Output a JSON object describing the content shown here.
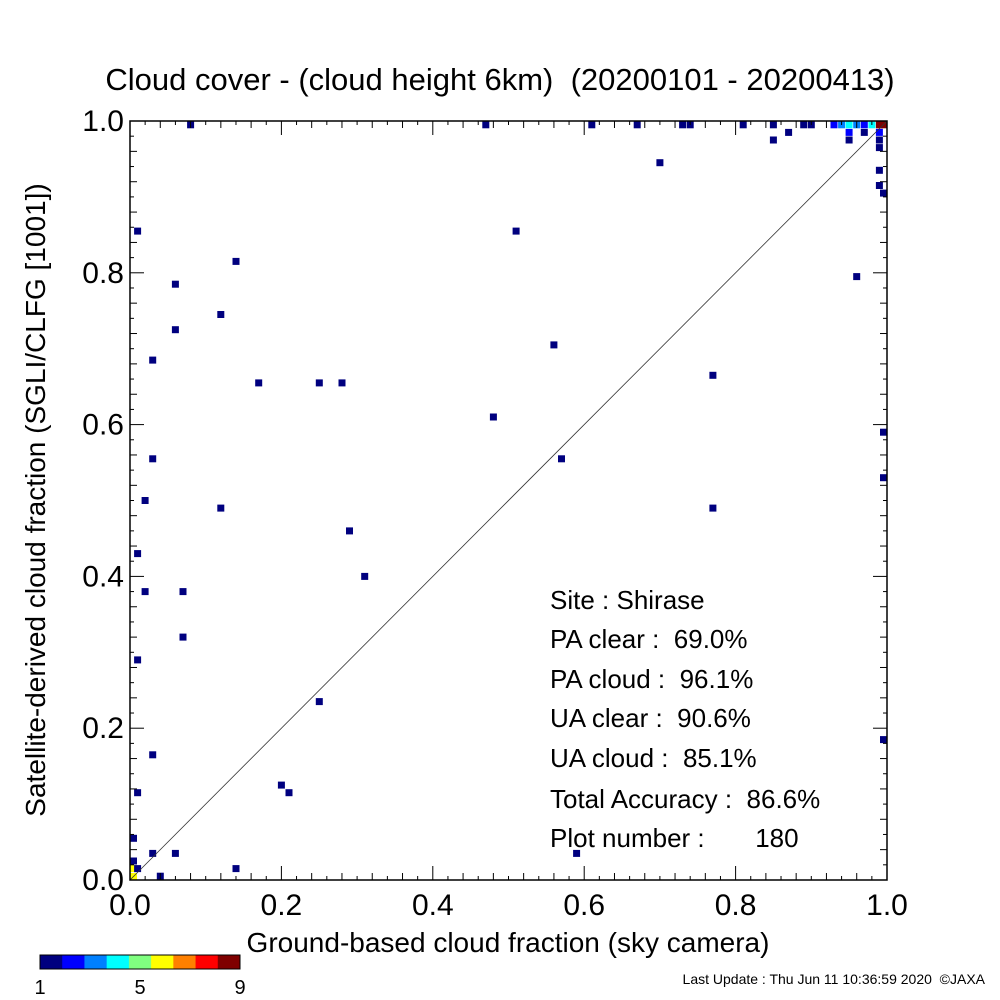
{
  "chart_data": {
    "type": "scatter",
    "title": "Cloud cover - (cloud height 6km)  (20200101 - 20200413)",
    "xlabel": "Ground-based cloud fraction (sky camera)",
    "ylabel": "Satellite-derived cloud fraction (SGLI/CLFG [1001])",
    "xlim": [
      0.0,
      1.0
    ],
    "ylim": [
      0.0,
      1.0
    ],
    "x_tick_labels": [
      "0.0",
      "0.2",
      "0.4",
      "0.6",
      "0.8",
      "1.0"
    ],
    "y_tick_labels": [
      "0.0",
      "0.2",
      "0.4",
      "0.6",
      "0.8",
      "1.0"
    ],
    "reference_line": "1:1 diagonal",
    "grid": false,
    "stats": {
      "site": "Site : Shirase",
      "pa_clear": "PA clear :  69.0%",
      "pa_cloud": "PA cloud :  96.1%",
      "ua_clear": "UA clear :  90.6%",
      "ua_cloud": "UA cloud :  85.1%",
      "total_accuracy": "Total Accuracy :  86.6%",
      "plot_number": "Plot number :       180"
    },
    "colorbar": {
      "min_label": "1",
      "mid_label": "5",
      "max_label": "9",
      "colors": [
        "#00007f",
        "#0000ff",
        "#0080ff",
        "#00ffff",
        "#80ff80",
        "#ffff00",
        "#ff8000",
        "#ff0000",
        "#7f0000"
      ]
    },
    "points": [
      {
        "x": 0.0,
        "y": 0.0,
        "count": 6
      },
      {
        "x": 0.0,
        "y": 0.015,
        "count": 6
      },
      {
        "x": 0.0,
        "y": 0.025,
        "count": 1
      },
      {
        "x": 0.0,
        "y": 0.055,
        "count": 1
      },
      {
        "x": 0.01,
        "y": 0.015,
        "count": 1
      },
      {
        "x": 0.01,
        "y": 0.115,
        "count": 1
      },
      {
        "x": 0.01,
        "y": 0.29,
        "count": 1
      },
      {
        "x": 0.01,
        "y": 0.43,
        "count": 1
      },
      {
        "x": 0.01,
        "y": 0.855,
        "count": 1
      },
      {
        "x": 0.02,
        "y": 0.38,
        "count": 1
      },
      {
        "x": 0.02,
        "y": 0.5,
        "count": 1
      },
      {
        "x": 0.03,
        "y": 0.035,
        "count": 1
      },
      {
        "x": 0.03,
        "y": 0.165,
        "count": 1
      },
      {
        "x": 0.03,
        "y": 0.555,
        "count": 1
      },
      {
        "x": 0.03,
        "y": 0.685,
        "count": 1
      },
      {
        "x": 0.04,
        "y": 0.005,
        "count": 1
      },
      {
        "x": 0.06,
        "y": 0.035,
        "count": 1
      },
      {
        "x": 0.06,
        "y": 0.725,
        "count": 1
      },
      {
        "x": 0.06,
        "y": 0.785,
        "count": 1
      },
      {
        "x": 0.07,
        "y": 0.32,
        "count": 1
      },
      {
        "x": 0.07,
        "y": 0.38,
        "count": 1
      },
      {
        "x": 0.08,
        "y": 0.995,
        "count": 1
      },
      {
        "x": 0.12,
        "y": 0.49,
        "count": 1
      },
      {
        "x": 0.12,
        "y": 0.745,
        "count": 1
      },
      {
        "x": 0.14,
        "y": 0.015,
        "count": 1
      },
      {
        "x": 0.14,
        "y": 0.815,
        "count": 1
      },
      {
        "x": 0.17,
        "y": 0.655,
        "count": 1
      },
      {
        "x": 0.2,
        "y": 0.125,
        "count": 1
      },
      {
        "x": 0.21,
        "y": 0.115,
        "count": 1
      },
      {
        "x": 0.25,
        "y": 0.235,
        "count": 1
      },
      {
        "x": 0.25,
        "y": 0.655,
        "count": 1
      },
      {
        "x": 0.28,
        "y": 0.655,
        "count": 1
      },
      {
        "x": 0.29,
        "y": 0.46,
        "count": 1
      },
      {
        "x": 0.31,
        "y": 0.4,
        "count": 1
      },
      {
        "x": 0.47,
        "y": 0.995,
        "count": 1
      },
      {
        "x": 0.48,
        "y": 0.61,
        "count": 1
      },
      {
        "x": 0.51,
        "y": 0.855,
        "count": 1
      },
      {
        "x": 0.56,
        "y": 0.705,
        "count": 1
      },
      {
        "x": 0.57,
        "y": 0.555,
        "count": 1
      },
      {
        "x": 0.59,
        "y": 0.035,
        "count": 1
      },
      {
        "x": 0.61,
        "y": 0.995,
        "count": 1
      },
      {
        "x": 0.67,
        "y": 0.995,
        "count": 1
      },
      {
        "x": 0.7,
        "y": 0.945,
        "count": 1
      },
      {
        "x": 0.73,
        "y": 0.995,
        "count": 1
      },
      {
        "x": 0.74,
        "y": 0.995,
        "count": 1
      },
      {
        "x": 0.77,
        "y": 0.49,
        "count": 1
      },
      {
        "x": 0.77,
        "y": 0.665,
        "count": 1
      },
      {
        "x": 0.81,
        "y": 0.995,
        "count": 1
      },
      {
        "x": 0.85,
        "y": 0.975,
        "count": 1
      },
      {
        "x": 0.85,
        "y": 0.995,
        "count": 1
      },
      {
        "x": 0.87,
        "y": 0.985,
        "count": 1
      },
      {
        "x": 0.89,
        "y": 0.995,
        "count": 1
      },
      {
        "x": 0.9,
        "y": 0.995,
        "count": 1
      },
      {
        "x": 0.93,
        "y": 0.995,
        "count": 2
      },
      {
        "x": 0.94,
        "y": 0.995,
        "count": 3
      },
      {
        "x": 0.95,
        "y": 0.995,
        "count": 4
      },
      {
        "x": 0.95,
        "y": 0.985,
        "count": 2
      },
      {
        "x": 0.95,
        "y": 0.975,
        "count": 1
      },
      {
        "x": 0.96,
        "y": 0.795,
        "count": 1
      },
      {
        "x": 0.96,
        "y": 0.995,
        "count": 3
      },
      {
        "x": 0.97,
        "y": 0.985,
        "count": 1
      },
      {
        "x": 0.97,
        "y": 0.995,
        "count": 2
      },
      {
        "x": 0.98,
        "y": 0.995,
        "count": 4
      },
      {
        "x": 0.99,
        "y": 0.995,
        "count": 9
      },
      {
        "x": 1.0,
        "y": 0.995,
        "count": 9
      },
      {
        "x": 0.99,
        "y": 0.985,
        "count": 2
      },
      {
        "x": 0.99,
        "y": 0.965,
        "count": 1
      },
      {
        "x": 0.99,
        "y": 0.975,
        "count": 1
      },
      {
        "x": 0.99,
        "y": 0.935,
        "count": 1
      },
      {
        "x": 0.99,
        "y": 0.915,
        "count": 1
      },
      {
        "x": 1.0,
        "y": 0.905,
        "count": 1
      },
      {
        "x": 1.0,
        "y": 0.59,
        "count": 1
      },
      {
        "x": 1.0,
        "y": 0.53,
        "count": 1
      },
      {
        "x": 1.0,
        "y": 0.185,
        "count": 1
      }
    ]
  },
  "footer": {
    "last_update": "Last Update : Thu Jun 11 10:36:59 2020  ©JAXA"
  }
}
